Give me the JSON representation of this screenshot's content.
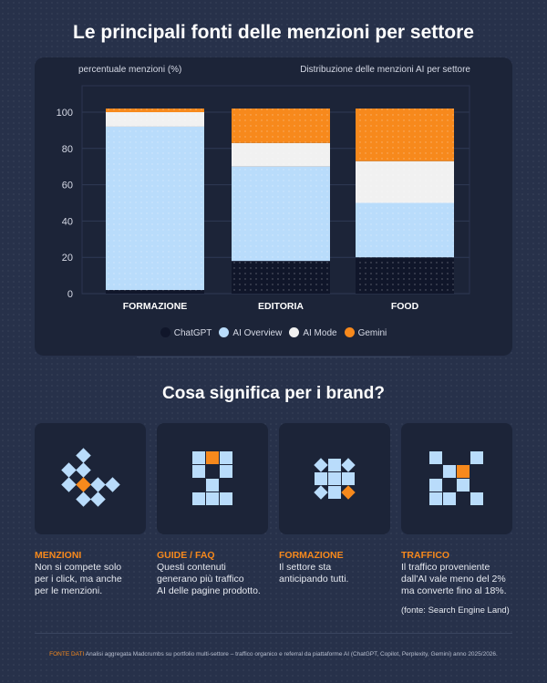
{
  "title": "Le principali fonti delle menzioni per settore",
  "chart_data": {
    "type": "bar",
    "stacked": true,
    "title": "Distribuzione delle menzioni AI per settore",
    "ylabel": "percentuale menzioni (%)",
    "xlabel": "",
    "categories": [
      "FORMAZIONE",
      "EDITORIA",
      "FOOD"
    ],
    "yticks": [
      "0",
      "20",
      "40",
      "60",
      "80",
      "100"
    ],
    "ylim": [
      0,
      105
    ],
    "grid": true,
    "legend_position": "bottom",
    "series": [
      {
        "name": "ChatGPT",
        "color": "#10162a",
        "values": [
          2,
          18,
          20
        ]
      },
      {
        "name": "AI Overview",
        "color": "#b9dcfb",
        "values": [
          90,
          52,
          30
        ]
      },
      {
        "name": "AI Mode",
        "color": "#f1f1f1",
        "values": [
          8,
          13,
          23
        ]
      },
      {
        "name": "Gemini",
        "color": "#f7891c",
        "values": [
          2,
          19,
          29
        ]
      }
    ]
  },
  "section_title": "Cosa significa per i brand?",
  "cards": [
    {
      "heading": "MENZIONI",
      "lines": [
        "Non si compete solo",
        "per i click, ma anche",
        "per le menzioni."
      ],
      "icon": "diamond-arrow-icon"
    },
    {
      "heading": "GUIDE / FAQ",
      "lines": [
        "Questi contenuti",
        "generano più traffico",
        "AI delle pagine prodotto."
      ],
      "icon": "pixel-page-icon"
    },
    {
      "heading": "FORMAZIONE",
      "lines": [
        "Il settore sta",
        "anticipando tutti."
      ],
      "icon": "pixel-gear-icon"
    },
    {
      "heading": "TRAFFICO",
      "lines": [
        "Il traffico proveniente",
        "dall'AI vale meno del 2%",
        "ma converte fino al 18%."
      ],
      "source": "(fonte: Search Engine Land)",
      "icon": "pixel-cross-icon"
    }
  ],
  "footer": {
    "label": "FONTE DATI",
    "text": "Analisi aggregata Madcrumbs su portfolio multi-settore – traffico organico e referral da piattaforme AI (ChatGPT, Copilot, Perplexity, Gemini) anno 2025/2026."
  },
  "colors": {
    "accent": "#f7891c",
    "light": "#b9dcfb"
  }
}
